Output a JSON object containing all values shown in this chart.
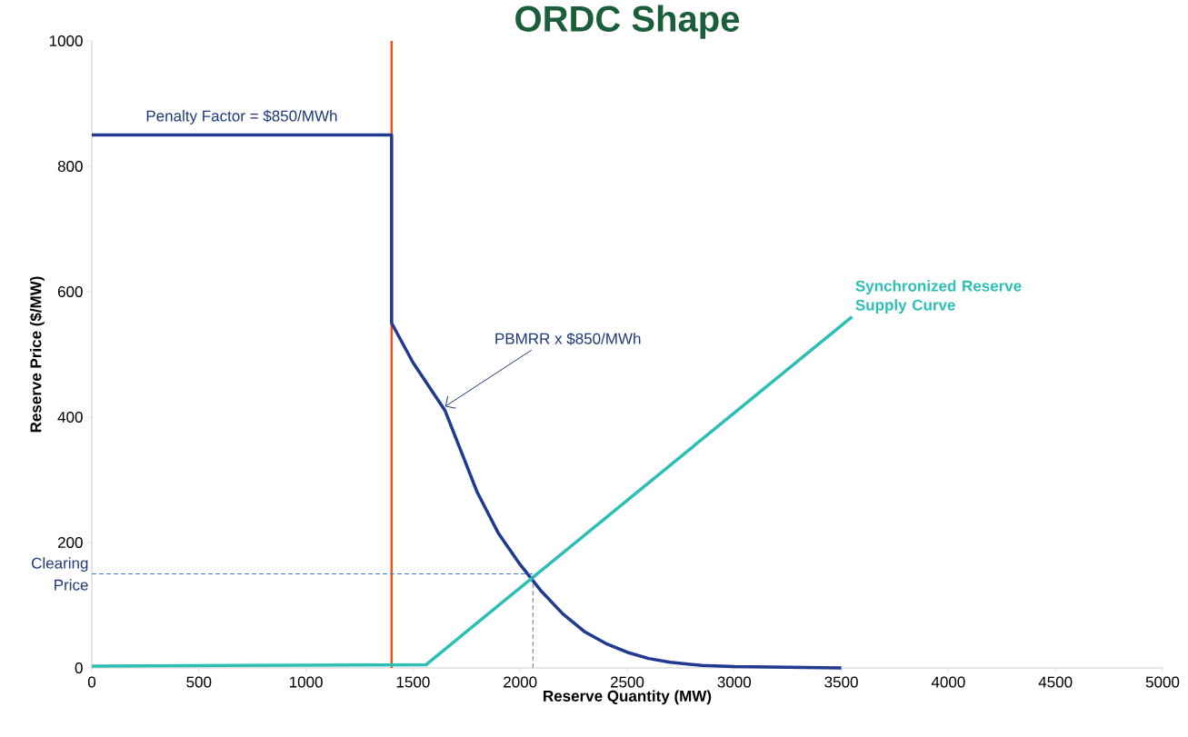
{
  "chart_data": {
    "type": "line",
    "title": "ORDC Shape",
    "xlabel": "Reserve Quantity (MW)",
    "ylabel": "Reserve Price ($/MW)",
    "xlim": [
      0,
      5000
    ],
    "ylim": [
      0,
      1000
    ],
    "xticks": [
      0,
      500,
      1000,
      1500,
      2000,
      2500,
      3000,
      3500,
      4000,
      4500,
      5000
    ],
    "yticks": [
      0,
      200,
      400,
      600,
      800,
      1000
    ],
    "series": [
      {
        "color": "#1f3a8f",
        "line_style": "solid",
        "x": [
          0,
          1400,
          1400,
          1500,
          1650,
          1800,
          1900,
          2000,
          2100,
          2200,
          2300,
          2400,
          2500,
          2600,
          2700,
          2850,
          3000,
          3500
        ],
        "values": [
          850,
          850,
          550,
          487,
          410,
          280,
          214,
          165,
          122,
          86,
          58,
          39,
          25,
          15,
          9,
          4,
          2,
          0
        ]
      },
      {
        "name": "Synchronized Reserve Supply Curve",
        "color": "#2bbfb5",
        "line_style": "solid",
        "x": [
          0,
          1560,
          3550
        ],
        "values": [
          3,
          5,
          560
        ]
      },
      {
        "name": "Clearing Price",
        "color": "#4a78c8",
        "line_style": "dashed",
        "x": [
          0,
          2060,
          2060
        ],
        "values": [
          150,
          150,
          0
        ]
      }
    ],
    "ref_lines": [
      {
        "axis": "x",
        "value": 1400,
        "color": "#e8541e"
      }
    ],
    "annotations": [
      {
        "text": "Penalty Factor = $850/MWh",
        "x": 700,
        "y": 850
      },
      {
        "text": "PBMRR x $850/MWh",
        "x": 1650,
        "y": 417
      }
    ]
  }
}
